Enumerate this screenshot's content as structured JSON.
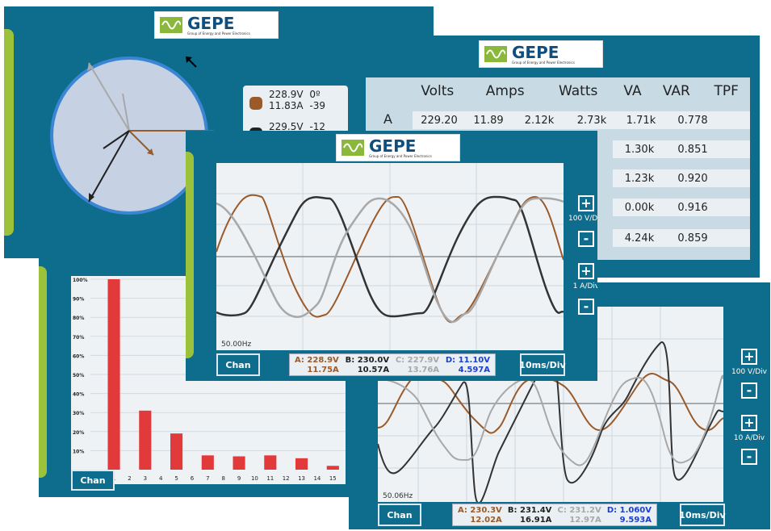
{
  "colors": {
    "screen_bg": "#0e6c8c",
    "accent_green": "#9cc23c",
    "phase_a": "#9a5a2a",
    "phase_b": "#222222",
    "phase_c": "#a8a8a8",
    "phase_d": "#1a3fd0",
    "harmonic_bar": "#e23a3a",
    "plot_bg": "#eef2f5"
  },
  "logo": {
    "title": "GEPE",
    "subtitle": "Group of Energy and Power Electronics",
    "icon": "sine-wave-icon"
  },
  "phasor_screen": {
    "readouts": [
      {
        "voltage": "228.9V",
        "angle_v": "0º",
        "current": "11.83A",
        "angle_i": "-39"
      },
      {
        "voltage": "229.5V",
        "angle_v": "-12",
        "current": "",
        "angle_i": ""
      }
    ]
  },
  "table_screen": {
    "headers": [
      "Volts",
      "Amps",
      "Watts",
      "VA",
      "VAR",
      "TPF"
    ],
    "rows": [
      {
        "label": "A",
        "cells": [
          "229.20",
          "11.89",
          "2.12k",
          "2.73k",
          "1.71k",
          "0.778"
        ]
      },
      {
        "label": "",
        "cells": [
          "",
          "",
          "",
          "",
          "1.30k",
          "0.851"
        ]
      },
      {
        "label": "",
        "cells": [
          "",
          "",
          "",
          "",
          "1.23k",
          "0.920"
        ]
      },
      {
        "label": "",
        "cells": [
          "",
          "",
          "",
          "",
          "0.00k",
          "0.916"
        ]
      },
      {
        "label": "",
        "cells": [
          "",
          "",
          "",
          "",
          "4.24k",
          "0.859"
        ]
      }
    ]
  },
  "harmonics_screen": {
    "chan_label": "Chan",
    "chart_data": {
      "type": "bar",
      "y_ticks": [
        "100%",
        "90%",
        "80%",
        "70%",
        "60%",
        "50%",
        "40%",
        "30%",
        "20%",
        "10%"
      ],
      "categories": [
        "DC",
        "1",
        "2",
        "3",
        "4",
        "5",
        "6",
        "7",
        "8",
        "9",
        "10",
        "11",
        "12",
        "13",
        "14",
        "15"
      ],
      "values": [
        0,
        100,
        0,
        31,
        0,
        19,
        0,
        7.5,
        0,
        7,
        0,
        7.5,
        0,
        6,
        0,
        2
      ],
      "ylim": [
        0,
        100
      ]
    }
  },
  "scope1": {
    "freq": "50.00Hz",
    "chan_label": "Chan",
    "timebase": "10ms/Div",
    "voltage_scale": "100 V/Div",
    "current_scale": "1 A/Div",
    "plus": "+",
    "minus": "-",
    "readout": [
      {
        "label": "A:",
        "v": "228.9V",
        "i": "11.75A"
      },
      {
        "label": "B:",
        "v": "230.0V",
        "i": "10.57A"
      },
      {
        "label": "C:",
        "v": "227.9V",
        "i": "13.76A"
      },
      {
        "label": "D:",
        "v": "11.10V",
        "i": "4.597A"
      }
    ]
  },
  "scope2": {
    "freq": "50.06Hz",
    "chan_label": "Chan",
    "timebase": "10ms/Div",
    "voltage_scale": "100 V/Div",
    "current_scale": "10 A/Div",
    "plus": "+",
    "minus": "-",
    "readout": [
      {
        "label": "A:",
        "v": "230.3V",
        "i": "12.02A"
      },
      {
        "label": "B:",
        "v": "231.4V",
        "i": "16.91A"
      },
      {
        "label": "C:",
        "v": "231.2V",
        "i": "12.97A"
      },
      {
        "label": "D:",
        "v": "1.060V",
        "i": "9.593A"
      }
    ]
  }
}
